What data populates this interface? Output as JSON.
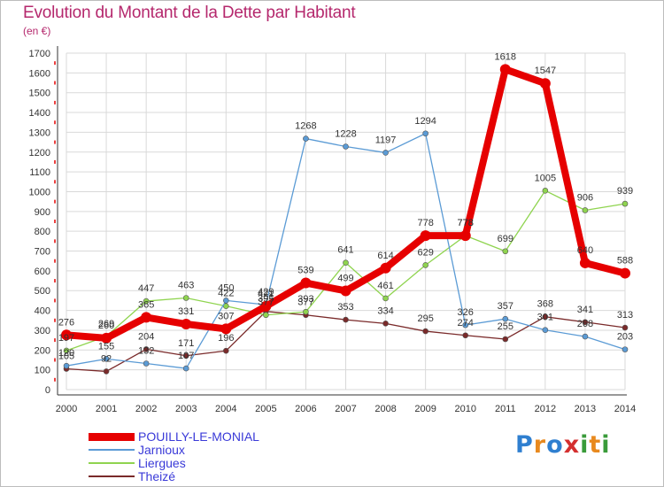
{
  "title": "Evolution du Montant de la Dette par Habitant",
  "unit_label": "(en €)",
  "logo": {
    "letters": [
      {
        "ch": "P",
        "color": "#2f7fd0"
      },
      {
        "ch": "r",
        "color": "#e8891e"
      },
      {
        "ch": "o",
        "color": "#2f7fd0"
      },
      {
        "ch": "x",
        "color": "#d42f2f"
      },
      {
        "ch": "i",
        "color": "#3a9b3a"
      },
      {
        "ch": "t",
        "color": "#e8891e"
      },
      {
        "ch": "i",
        "color": "#3a9b3a"
      }
    ]
  },
  "chart_data": {
    "type": "line",
    "title": "Evolution du Montant de la Dette par Habitant",
    "ylabel": "(en €)",
    "xlabel": "",
    "x": [
      "2000",
      "2001",
      "2002",
      "2003",
      "2004",
      "2005",
      "2006",
      "2007",
      "2008",
      "2009",
      "2010",
      "2011",
      "2012",
      "2013",
      "2014"
    ],
    "ylim": [
      0,
      1700
    ],
    "yticks": [
      0,
      100,
      200,
      300,
      400,
      500,
      600,
      700,
      800,
      900,
      1000,
      1100,
      1200,
      1300,
      1400,
      1500,
      1600,
      1700
    ],
    "grid": true,
    "legend_position": "bottom-left",
    "series": [
      {
        "name": "POUILLY-LE-MONIAL",
        "color": "#e60000",
        "values": [
          276,
          260,
          365,
          331,
          307,
          421,
          539,
          499,
          614,
          778,
          778,
          1618,
          1547,
          640,
          588
        ]
      },
      {
        "name": "Jarnioux",
        "color": "#5b9bd5",
        "values": [
          120,
          155,
          132,
          107,
          450,
          429,
          1268,
          1228,
          1197,
          1294,
          326,
          357,
          301,
          268,
          203
        ]
      },
      {
        "name": "Liergues",
        "color": "#8fd44f",
        "values": [
          197,
          269,
          447,
          463,
          422,
          377,
          393,
          641,
          461,
          629,
          778,
          699,
          1005,
          906,
          939
        ]
      },
      {
        "name": "Theizé",
        "color": "#7a2a2a",
        "values": [
          105,
          92,
          204,
          171,
          196,
          395,
          377,
          353,
          334,
          295,
          274,
          255,
          368,
          341,
          313
        ]
      }
    ]
  }
}
